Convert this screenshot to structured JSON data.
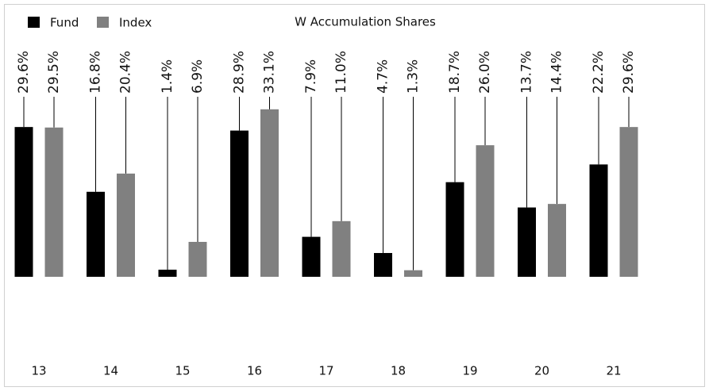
{
  "chart_data": {
    "type": "bar",
    "title": "W Accumulation Shares",
    "categories": [
      "13",
      "14",
      "15",
      "16",
      "17",
      "18",
      "19",
      "20",
      "21"
    ],
    "series": [
      {
        "name": "Fund",
        "color": "#000000",
        "values": [
          29.6,
          16.8,
          1.4,
          28.9,
          7.9,
          4.7,
          18.7,
          13.7,
          22.2
        ],
        "value_labels": [
          "29.6%",
          "16.8%",
          "1.4%",
          "28.9%",
          "7.9%",
          "4.7%",
          "18.7%",
          "13.7%",
          "22.2%"
        ]
      },
      {
        "name": "Index",
        "color": "#808080",
        "values": [
          29.5,
          20.4,
          6.9,
          33.1,
          11.0,
          1.3,
          26.0,
          14.4,
          29.6
        ],
        "value_labels": [
          "29.5%",
          "20.4%",
          "6.9%",
          "33.1%",
          "11.0%",
          "1.3%",
          "26.0%",
          "14.4%",
          "29.6%"
        ]
      }
    ]
  }
}
